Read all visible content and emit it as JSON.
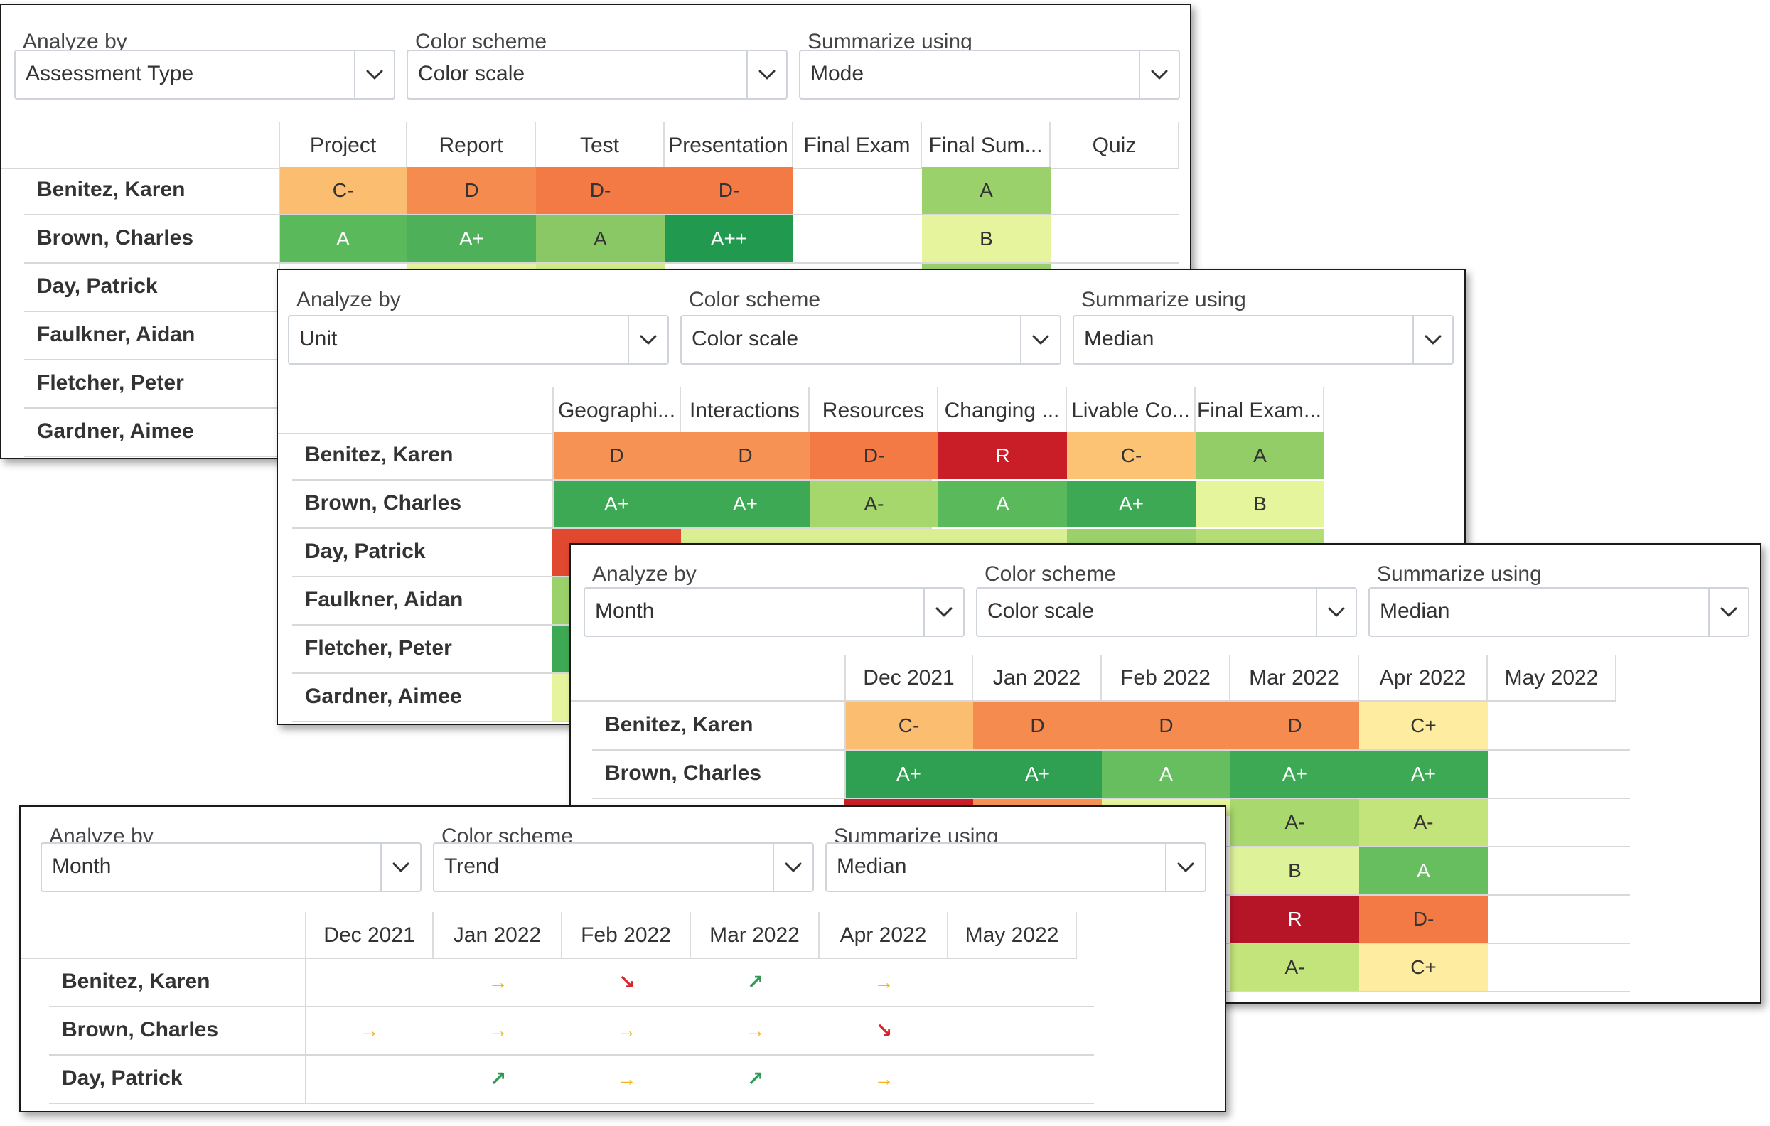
{
  "panels": [
    {
      "analyze_label": "Analyze by",
      "color_label": "Color scheme",
      "summarize_label": "Summarize using",
      "analyze_value": "Assessment Type",
      "color_value": "Color scale",
      "summarize_value": "Mode",
      "columns": [
        "Project",
        "Report",
        "Test",
        "Presentation",
        "Final Exam",
        "Final Sum...",
        "Quiz"
      ],
      "rows": [
        {
          "name": "Benitez, Karen",
          "cells": [
            {
              "text": "C-",
              "color": "#fbbd6f"
            },
            {
              "text": "D",
              "color": "#f58b4f"
            },
            {
              "text": "D-",
              "color": "#f47a45"
            },
            {
              "text": "D-",
              "color": "#f47a45"
            },
            {
              "text": "",
              "color": ""
            },
            {
              "text": "A",
              "color": "#9bd16b"
            },
            {
              "text": "",
              "color": ""
            }
          ]
        },
        {
          "name": "Brown, Charles",
          "cells": [
            {
              "text": "A",
              "color": "#5ab95b"
            },
            {
              "text": "A+",
              "color": "#4eb15a"
            },
            {
              "text": "A",
              "color": "#8ac865"
            },
            {
              "text": "A++",
              "color": "#219a4f"
            },
            {
              "text": "",
              "color": ""
            },
            {
              "text": "B",
              "color": "#e6f59d"
            },
            {
              "text": "",
              "color": ""
            }
          ]
        },
        {
          "name": "Day, Patrick",
          "cells": []
        },
        {
          "name": "Faulkner, Aidan",
          "cells": []
        },
        {
          "name": "Fletcher, Peter",
          "cells": []
        },
        {
          "name": "Gardner, Aimee",
          "cells": []
        }
      ]
    },
    {
      "analyze_label": "Analyze by",
      "color_label": "Color scheme",
      "summarize_label": "Summarize using",
      "analyze_value": "Unit",
      "color_value": "Color scale",
      "summarize_value": "Median",
      "columns": [
        "Geographi...",
        "Interactions",
        "Resources",
        "Changing ...",
        "Livable Co...",
        "Final Exam..."
      ],
      "rows": [
        {
          "name": "Benitez, Karen",
          "cells": [
            {
              "text": "D",
              "color": "#f69354"
            },
            {
              "text": "D",
              "color": "#f69354"
            },
            {
              "text": "D-",
              "color": "#f47a45"
            },
            {
              "text": "R",
              "color": "#c91e27"
            },
            {
              "text": "C-",
              "color": "#fdc374"
            },
            {
              "text": "A",
              "color": "#93cd67"
            }
          ]
        },
        {
          "name": "Brown, Charles",
          "cells": [
            {
              "text": "A+",
              "color": "#3ea955"
            },
            {
              "text": "A+",
              "color": "#3ea955"
            },
            {
              "text": "A-",
              "color": "#a6d76d"
            },
            {
              "text": "A",
              "color": "#5ab95b"
            },
            {
              "text": "A+",
              "color": "#3ea955"
            },
            {
              "text": "B",
              "color": "#e4f59b"
            }
          ]
        },
        {
          "name": "Day, Patrick",
          "cells": []
        },
        {
          "name": "Faulkner, Aidan",
          "cells": []
        },
        {
          "name": "Fletcher, Peter",
          "cells": []
        },
        {
          "name": "Gardner, Aimee",
          "cells": []
        }
      ]
    },
    {
      "analyze_label": "Analyze by",
      "color_label": "Color scheme",
      "summarize_label": "Summarize using",
      "analyze_value": "Month",
      "color_value": "Color scale",
      "summarize_value": "Median",
      "columns": [
        "Dec 2021",
        "Jan 2022",
        "Feb 2022",
        "Mar 2022",
        "Apr 2022",
        "May 2022"
      ],
      "rows": [
        {
          "name": "Benitez, Karen",
          "cells": [
            {
              "text": "C-",
              "color": "#fbbd6f"
            },
            {
              "text": "D",
              "color": "#f58b4f"
            },
            {
              "text": "D",
              "color": "#f58b4f"
            },
            {
              "text": "D",
              "color": "#f58b4f"
            },
            {
              "text": "C+",
              "color": "#feeca0"
            },
            {
              "text": "",
              "color": ""
            }
          ]
        },
        {
          "name": "Brown, Charles",
          "cells": [
            {
              "text": "A+",
              "color": "#2f9f52"
            },
            {
              "text": "A+",
              "color": "#2f9f52"
            },
            {
              "text": "A",
              "color": "#66be5e"
            },
            {
              "text": "A+",
              "color": "#3ea955"
            },
            {
              "text": "A+",
              "color": "#3ea955"
            },
            {
              "text": "",
              "color": ""
            }
          ]
        },
        {
          "name": "",
          "cells": [
            {
              "text": "",
              "color": ""
            },
            {
              "text": "",
              "color": ""
            },
            {
              "text": "",
              "color": ""
            },
            {
              "text": "A-",
              "color": "#a8d86e"
            },
            {
              "text": "A-",
              "color": "#c3e47b"
            },
            {
              "text": "",
              "color": ""
            }
          ]
        },
        {
          "name": "",
          "cells": [
            {
              "text": "",
              "color": ""
            },
            {
              "text": "",
              "color": ""
            },
            {
              "text": "",
              "color": ""
            },
            {
              "text": "B",
              "color": "#def29a"
            },
            {
              "text": "A",
              "color": "#66be5e"
            },
            {
              "text": "",
              "color": ""
            }
          ]
        },
        {
          "name": "",
          "cells": [
            {
              "text": "",
              "color": ""
            },
            {
              "text": "",
              "color": ""
            },
            {
              "text": "",
              "color": ""
            },
            {
              "text": "R",
              "color": "#b61427"
            },
            {
              "text": "D-",
              "color": "#f47a45"
            },
            {
              "text": "",
              "color": ""
            }
          ]
        },
        {
          "name": "",
          "cells": [
            {
              "text": "",
              "color": ""
            },
            {
              "text": "",
              "color": ""
            },
            {
              "text": "",
              "color": ""
            },
            {
              "text": "A-",
              "color": "#c3e47b"
            },
            {
              "text": "C+",
              "color": "#feeca0"
            },
            {
              "text": "",
              "color": ""
            }
          ]
        }
      ]
    },
    {
      "analyze_label": "Analyze by",
      "color_label": "Color scheme",
      "summarize_label": "Summarize using",
      "analyze_value": "Month",
      "color_value": "Trend",
      "summarize_value": "Median",
      "columns": [
        "Dec 2021",
        "Jan 2022",
        "Feb 2022",
        "Mar 2022",
        "Apr 2022",
        "May 2022"
      ],
      "rows": [
        {
          "name": "Benitez, Karen",
          "trends": [
            "",
            "flat",
            "down",
            "up",
            "flat",
            ""
          ]
        },
        {
          "name": "Brown, Charles",
          "trends": [
            "flat",
            "flat",
            "flat",
            "flat",
            "down",
            ""
          ]
        },
        {
          "name": "Day, Patrick",
          "trends": [
            "",
            "up",
            "flat",
            "up",
            "flat",
            ""
          ]
        }
      ]
    }
  ],
  "trend_glyphs": {
    "flat": "→",
    "up": "↗",
    "down": "↘"
  },
  "trend_colors": {
    "flat": "#f2b51c",
    "up": "#2e9b55",
    "down": "#d7262e"
  },
  "partial_colors": {
    "panel1_row3": [
      "",
      "#e6f59d",
      "#d3ec8a",
      "",
      "",
      "#9bd16b",
      ""
    ],
    "panel2_row3": [
      "#e0482f",
      "#d9ef91",
      "#d9ef91",
      "#d9ef91",
      "#9bd16b",
      "#b4dd76"
    ],
    "panel2_left_strip": [
      "#e0482f",
      "#9bd16b",
      "#3ea955",
      "#e6f59d"
    ],
    "panel3_row3": [
      "#c91e27",
      "#f69354",
      "#e6f59d"
    ],
    "panel3_left_strip": [
      "#f47a45",
      "#f47a45",
      "#f47a45",
      "#e6f59d"
    ]
  },
  "icons": {
    "dropdown": "chevron-down-icon"
  }
}
